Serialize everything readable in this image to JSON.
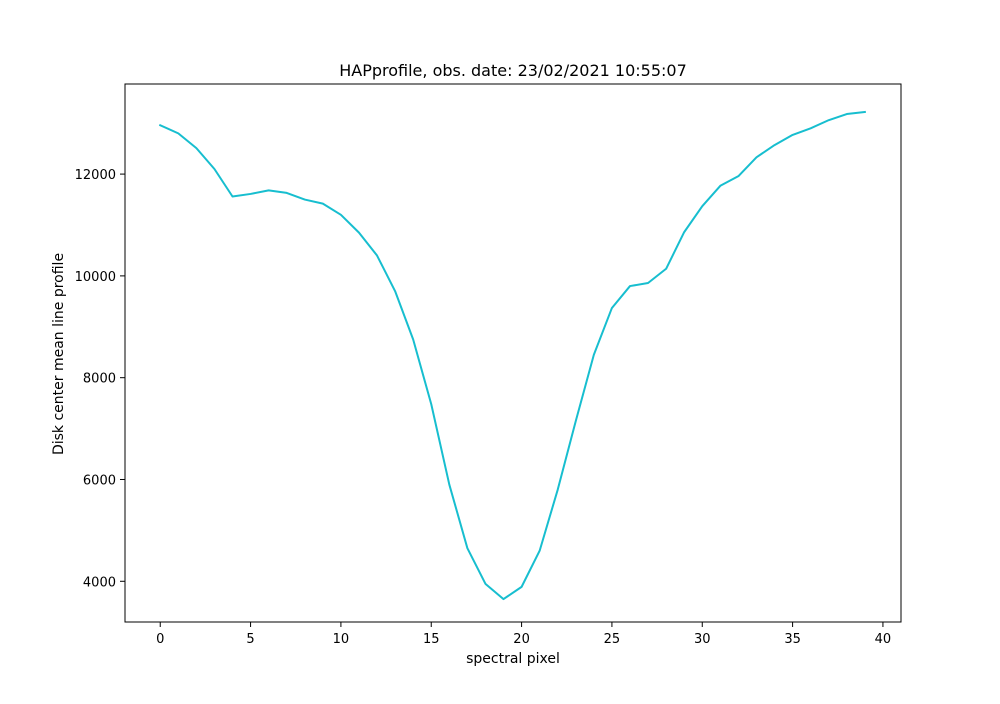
{
  "chart_data": {
    "type": "line",
    "title": "HAPprofile, obs. date: 23/02/2021 10:55:07",
    "xlabel": "spectral pixel",
    "ylabel": "Disk center mean line profile",
    "xlim": [
      -1.95,
      41.0
    ],
    "ylim": [
      3200,
      13770
    ],
    "xticks": [
      0,
      5,
      10,
      15,
      20,
      25,
      30,
      35,
      40
    ],
    "yticks": [
      4000,
      6000,
      8000,
      10000,
      12000
    ],
    "grid": false,
    "legend": null,
    "series": [
      {
        "color": "#17becf",
        "x": [
          0,
          1,
          2,
          3,
          4,
          5,
          6,
          7,
          8,
          9,
          10,
          11,
          12,
          13,
          14,
          15,
          16,
          17,
          18,
          19,
          20,
          21,
          22,
          23,
          24,
          25,
          26,
          27,
          28,
          29,
          30,
          31,
          32,
          33,
          34,
          35,
          36,
          37,
          38,
          39
        ],
        "y": [
          12960,
          12800,
          12510,
          12100,
          11560,
          11610,
          11680,
          11630,
          11500,
          11420,
          11200,
          10850,
          10400,
          9700,
          8750,
          7480,
          5900,
          4650,
          3950,
          3650,
          3890,
          4600,
          5800,
          7150,
          8450,
          9370,
          9800,
          9860,
          10140,
          10860,
          11370,
          11770,
          11960,
          12330,
          12570,
          12770,
          12900,
          13060,
          13180,
          13220
        ]
      }
    ]
  }
}
